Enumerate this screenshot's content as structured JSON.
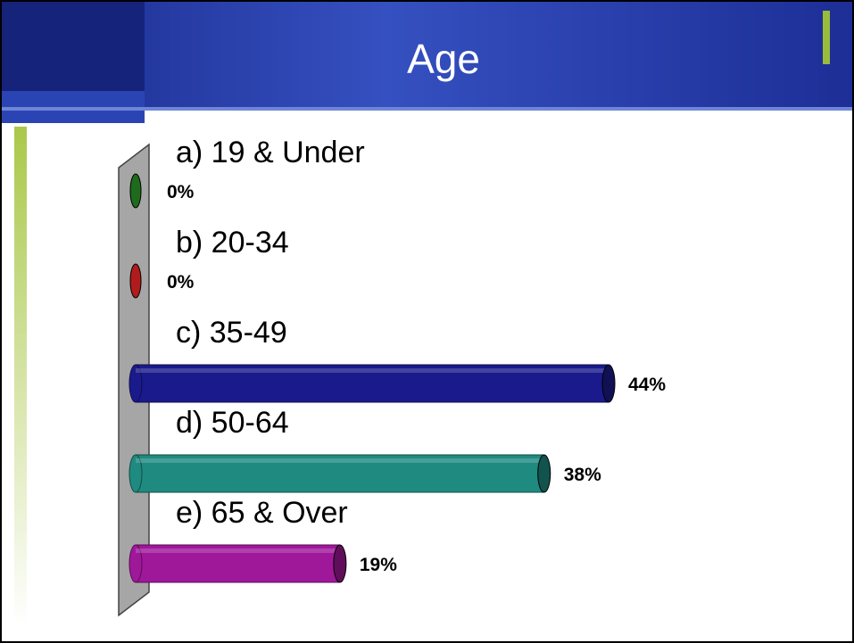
{
  "slide": {
    "title": "Age",
    "colors": {
      "header_dark": "#1f2f9e",
      "header_light": "#3a56c8",
      "accent_green": "#9bbb3c",
      "axis_wall": "#a6a6a6"
    }
  },
  "chart_data": {
    "type": "bar",
    "orientation": "horizontal",
    "title": "",
    "categories": [
      "a)  19 & Under",
      "b)  20-34",
      "c)  35-49",
      "d)  50-64",
      "e)  65 & Over"
    ],
    "values": [
      0,
      0,
      44,
      38,
      19
    ],
    "value_labels": [
      "0%",
      "0%",
      "44%",
      "38%",
      "19%"
    ],
    "colors": [
      "#1e6b1e",
      "#b01c1c",
      "#1a1a8c",
      "#1f8a80",
      "#a0189a"
    ],
    "xlim": [
      0,
      44
    ],
    "unit": "%",
    "grid": false,
    "legend": "none"
  }
}
